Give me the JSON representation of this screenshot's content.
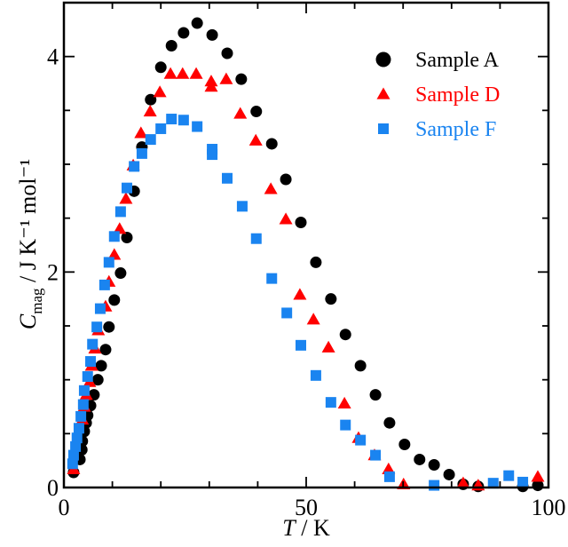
{
  "chart_data": {
    "type": "scatter",
    "title": "",
    "xlabel": {
      "var": "T",
      "unit": "K"
    },
    "ylabel": {
      "var": "C",
      "sub": "mag",
      "unit": "J K⁻¹ mol⁻¹"
    },
    "xlim": [
      0,
      100
    ],
    "ylim": [
      0,
      4.5
    ],
    "xticks": [
      0,
      50,
      100
    ],
    "xtick_labels": [
      "0",
      "50",
      "100"
    ],
    "xminor_step": 10,
    "yticks": [
      0,
      2,
      4
    ],
    "ytick_labels": [
      "0",
      "2",
      "4"
    ],
    "yminor_step": 0.5,
    "grid": false,
    "legend_position": "top-right",
    "series": [
      {
        "name": "Sample A",
        "marker": "circle",
        "color": "#000000",
        "x": [
          2.0,
          3.3,
          3.7,
          3.8,
          4.2,
          4.6,
          4.9,
          5.5,
          6.2,
          7.0,
          7.7,
          8.6,
          9.3,
          10.4,
          11.7,
          13.0,
          14.5,
          16.1,
          17.9,
          20.0,
          22.2,
          24.7,
          27.5,
          30.6,
          33.7,
          36.6,
          39.7,
          42.9,
          45.8,
          48.9,
          52.0,
          55.1,
          58.1,
          61.2,
          64.3,
          67.2,
          70.3,
          73.4,
          76.4,
          79.5,
          82.4,
          85.5,
          94.7,
          97.8
        ],
        "y": [
          0.14,
          0.26,
          0.35,
          0.43,
          0.52,
          0.6,
          0.67,
          0.76,
          0.86,
          1.0,
          1.13,
          1.28,
          1.49,
          1.74,
          1.99,
          2.32,
          2.75,
          3.16,
          3.6,
          3.9,
          4.1,
          4.22,
          4.31,
          4.2,
          4.03,
          3.79,
          3.49,
          3.19,
          2.86,
          2.46,
          2.09,
          1.75,
          1.42,
          1.13,
          0.86,
          0.6,
          0.4,
          0.26,
          0.21,
          0.12,
          0.03,
          0.01,
          0.01,
          0.02
        ]
      },
      {
        "name": "Sample D",
        "marker": "triangle",
        "color": "#ff0000",
        "x": [
          2.0,
          3.8,
          4.2,
          4.6,
          5.3,
          5.7,
          6.4,
          7.1,
          8.6,
          9.3,
          10.4,
          11.5,
          12.8,
          14.3,
          15.9,
          17.8,
          19.8,
          22.0,
          24.5,
          27.3,
          30.4,
          30.4,
          33.5,
          36.4,
          39.6,
          42.7,
          45.8,
          48.7,
          51.5,
          54.6,
          57.9,
          60.8,
          64.1,
          67.0,
          70.1,
          82.4,
          85.5,
          97.8
        ],
        "y": [
          0.17,
          0.63,
          0.75,
          0.86,
          0.98,
          1.13,
          1.29,
          1.46,
          1.68,
          1.91,
          2.16,
          2.4,
          2.68,
          2.99,
          3.29,
          3.49,
          3.67,
          3.84,
          3.84,
          3.84,
          3.72,
          3.77,
          3.79,
          3.47,
          3.22,
          2.77,
          2.49,
          1.79,
          1.56,
          1.3,
          0.78,
          0.46,
          0.3,
          0.17,
          0.03,
          0.04,
          0.02,
          0.1
        ]
      },
      {
        "name": "Sample F",
        "marker": "square",
        "color": "#1a84f0",
        "x": [
          1.8,
          2.0,
          2.4,
          2.7,
          3.1,
          3.5,
          4.0,
          4.2,
          4.9,
          5.5,
          5.9,
          6.8,
          7.5,
          8.4,
          9.3,
          10.4,
          11.7,
          13.0,
          14.5,
          16.1,
          17.9,
          20.0,
          22.2,
          24.7,
          27.5,
          30.6,
          30.6,
          33.7,
          36.8,
          39.7,
          42.9,
          46.0,
          48.9,
          52.0,
          55.1,
          58.1,
          61.2,
          64.3,
          67.2,
          76.4,
          88.6,
          91.8,
          94.7
        ],
        "y": [
          0.22,
          0.3,
          0.38,
          0.46,
          0.55,
          0.66,
          0.77,
          0.9,
          1.03,
          1.17,
          1.33,
          1.49,
          1.66,
          1.88,
          2.09,
          2.33,
          2.56,
          2.78,
          2.98,
          3.1,
          3.23,
          3.33,
          3.42,
          3.41,
          3.35,
          3.14,
          3.09,
          2.87,
          2.61,
          2.31,
          1.94,
          1.62,
          1.32,
          1.04,
          0.79,
          0.58,
          0.44,
          0.3,
          0.1,
          0.02,
          0.04,
          0.11,
          0.05
        ]
      }
    ]
  }
}
